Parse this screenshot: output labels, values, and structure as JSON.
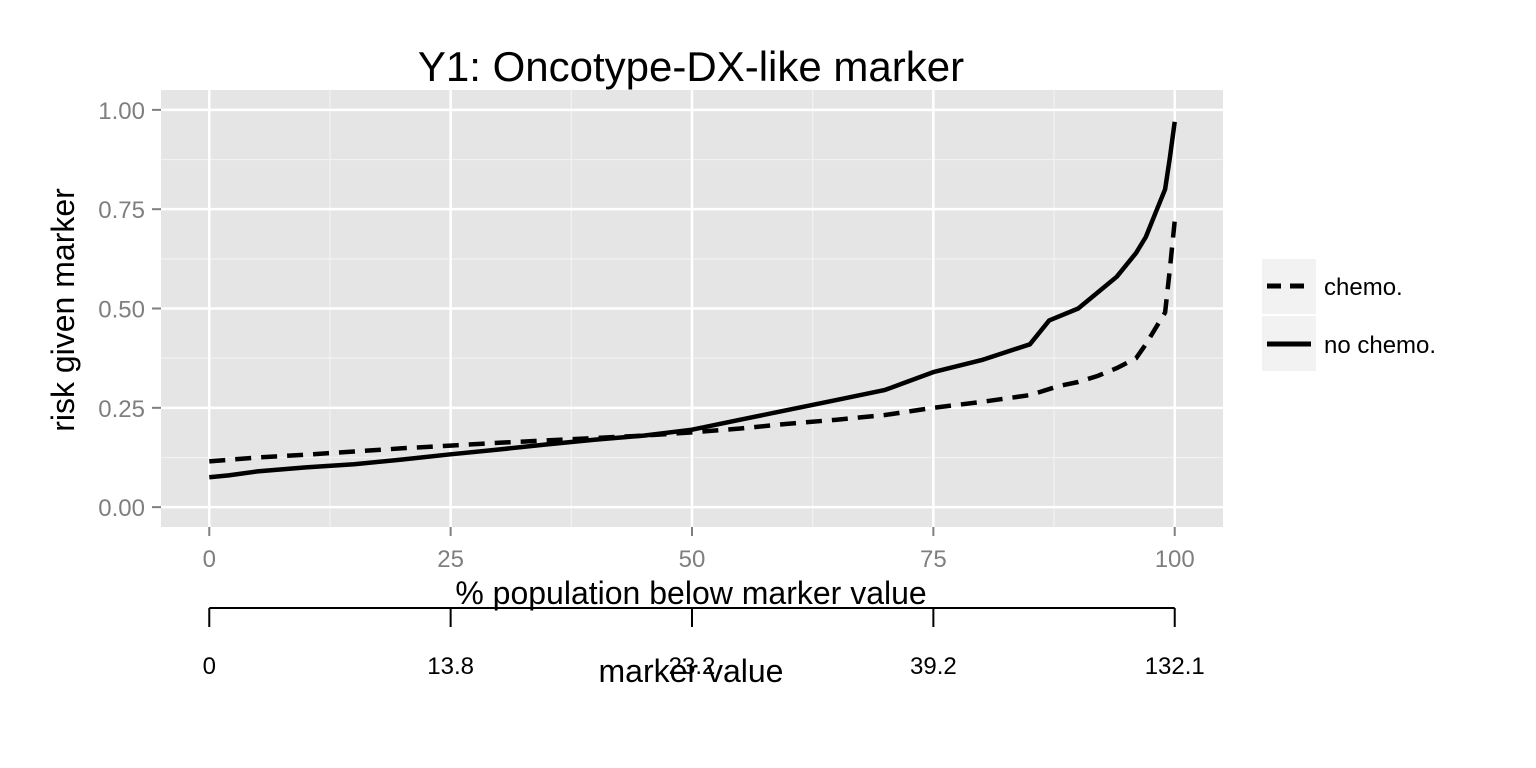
{
  "chart_data": {
    "type": "line",
    "title": "Y1: Oncotype-DX-like marker",
    "xlabel": "% population below marker value",
    "ylabel": "risk given marker",
    "xlim": [
      -5,
      105
    ],
    "ylim": [
      -0.05,
      1.05
    ],
    "x_ticks": [
      0,
      25,
      50,
      75,
      100
    ],
    "x_tick_labels": [
      "0",
      "25",
      "50",
      "75",
      "100"
    ],
    "y_ticks": [
      0,
      0.25,
      0.5,
      0.75,
      1.0
    ],
    "y_tick_labels": [
      "0.00",
      "0.25",
      "0.50",
      "0.75",
      "1.00"
    ],
    "grid": true,
    "legend_position": "right",
    "series": [
      {
        "name": "chemo.",
        "line_style": "dashed",
        "color": "#000000",
        "x": [
          0,
          5,
          10,
          15,
          20,
          25,
          30,
          35,
          40,
          45,
          50,
          55,
          60,
          65,
          70,
          75,
          80,
          85,
          88,
          90,
          92,
          94,
          96,
          97,
          98,
          99,
          99.5,
          100
        ],
        "y": [
          0.115,
          0.125,
          0.132,
          0.14,
          0.148,
          0.155,
          0.162,
          0.168,
          0.174,
          0.18,
          0.188,
          0.198,
          0.21,
          0.22,
          0.232,
          0.25,
          0.265,
          0.282,
          0.305,
          0.315,
          0.33,
          0.35,
          0.375,
          0.41,
          0.45,
          0.49,
          0.6,
          0.72
        ]
      },
      {
        "name": "no chemo.",
        "line_style": "solid",
        "color": "#000000",
        "x": [
          0,
          2,
          5,
          10,
          15,
          20,
          25,
          30,
          35,
          40,
          45,
          50,
          55,
          60,
          65,
          70,
          75,
          80,
          85,
          87,
          90,
          92,
          94,
          96,
          97,
          98,
          99,
          99.5,
          100
        ],
        "y": [
          0.075,
          0.08,
          0.09,
          0.1,
          0.108,
          0.12,
          0.133,
          0.145,
          0.158,
          0.17,
          0.18,
          0.195,
          0.22,
          0.245,
          0.27,
          0.295,
          0.34,
          0.37,
          0.41,
          0.47,
          0.5,
          0.54,
          0.58,
          0.64,
          0.68,
          0.74,
          0.8,
          0.88,
          0.97
        ]
      }
    ],
    "secondary_axis": {
      "label": "marker value",
      "ticks_at_percent": [
        0,
        25,
        50,
        75,
        100
      ],
      "tick_labels": [
        "0",
        "13.8",
        "23.2",
        "39.2",
        "132.1"
      ]
    }
  }
}
